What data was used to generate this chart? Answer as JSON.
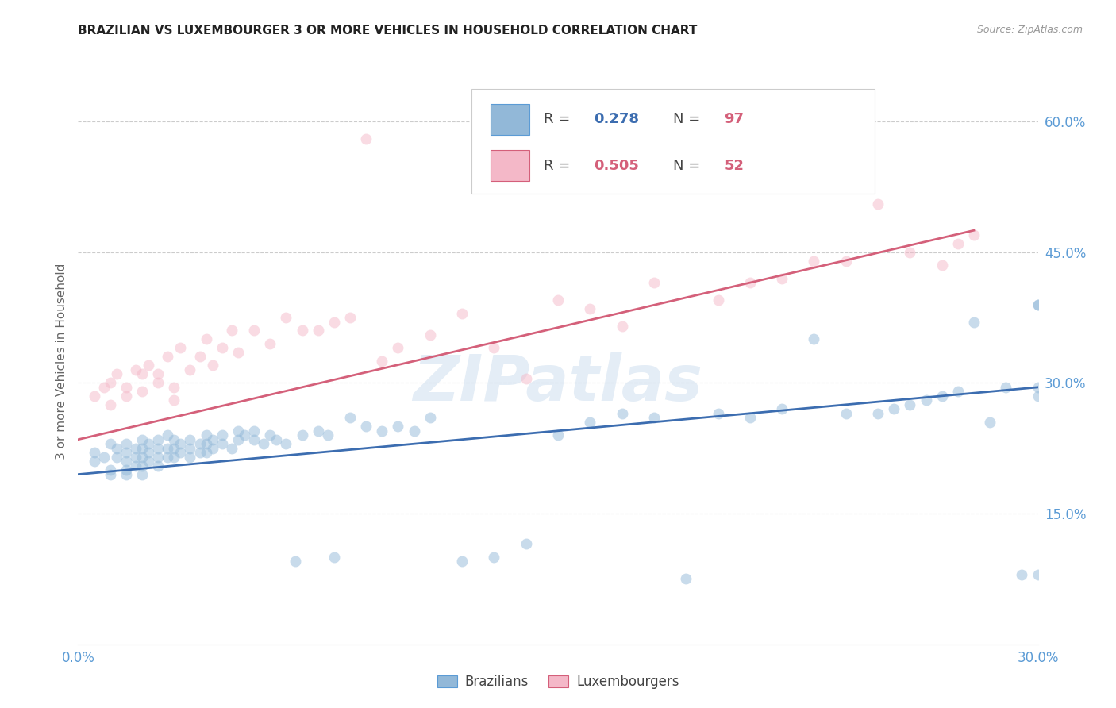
{
  "title": "BRAZILIAN VS LUXEMBOURGER 3 OR MORE VEHICLES IN HOUSEHOLD CORRELATION CHART",
  "source": "Source: ZipAtlas.com",
  "ylabel": "3 or more Vehicles in Household",
  "xlim": [
    0.0,
    0.3
  ],
  "ylim": [
    0.0,
    0.65
  ],
  "xtick_positions": [
    0.0,
    0.05,
    0.1,
    0.15,
    0.2,
    0.25,
    0.3
  ],
  "xtick_labels": [
    "0.0%",
    "",
    "",
    "",
    "",
    "",
    "30.0%"
  ],
  "ytick_values": [
    0.15,
    0.3,
    0.45,
    0.6
  ],
  "ytick_labels": [
    "15.0%",
    "30.0%",
    "45.0%",
    "60.0%"
  ],
  "watermark": "ZIPatlas",
  "blue_scatter_color": "#92b8d8",
  "pink_scatter_color": "#f4b8c8",
  "blue_line_color": "#3c6db0",
  "pink_line_color": "#d4607a",
  "tick_color": "#5b9bd5",
  "grid_color": "#cccccc",
  "background_color": "#ffffff",
  "blue_line_x0": 0.0,
  "blue_line_x1": 0.3,
  "blue_line_y0": 0.195,
  "blue_line_y1": 0.295,
  "pink_line_x0": 0.0,
  "pink_line_x1": 0.28,
  "pink_line_y0": 0.235,
  "pink_line_y1": 0.475,
  "legend_blue_r": "0.278",
  "legend_blue_n": "97",
  "legend_pink_r": "0.505",
  "legend_pink_n": "52",
  "bottom_legend_brazilians": "Brazilians",
  "bottom_legend_luxembourgers": "Luxembourgers",
  "scatter_size": 100,
  "scatter_alpha": 0.5,
  "line_width": 2.0,
  "brazilians_x": [
    0.005,
    0.005,
    0.008,
    0.01,
    0.01,
    0.01,
    0.012,
    0.012,
    0.015,
    0.015,
    0.015,
    0.015,
    0.015,
    0.018,
    0.018,
    0.018,
    0.02,
    0.02,
    0.02,
    0.02,
    0.02,
    0.022,
    0.022,
    0.022,
    0.025,
    0.025,
    0.025,
    0.025,
    0.028,
    0.028,
    0.028,
    0.03,
    0.03,
    0.03,
    0.032,
    0.032,
    0.035,
    0.035,
    0.035,
    0.038,
    0.038,
    0.04,
    0.04,
    0.04,
    0.042,
    0.042,
    0.045,
    0.045,
    0.048,
    0.05,
    0.05,
    0.052,
    0.055,
    0.055,
    0.058,
    0.06,
    0.062,
    0.065,
    0.068,
    0.07,
    0.075,
    0.078,
    0.08,
    0.085,
    0.09,
    0.095,
    0.1,
    0.105,
    0.11,
    0.12,
    0.13,
    0.14,
    0.15,
    0.16,
    0.17,
    0.18,
    0.19,
    0.2,
    0.21,
    0.22,
    0.23,
    0.24,
    0.25,
    0.255,
    0.26,
    0.265,
    0.27,
    0.275,
    0.28,
    0.285,
    0.29,
    0.295,
    0.3,
    0.3,
    0.3,
    0.3,
    0.3
  ],
  "brazilians_y": [
    0.22,
    0.21,
    0.215,
    0.23,
    0.2,
    0.195,
    0.225,
    0.215,
    0.23,
    0.22,
    0.21,
    0.2,
    0.195,
    0.225,
    0.215,
    0.205,
    0.235,
    0.225,
    0.215,
    0.205,
    0.195,
    0.23,
    0.22,
    0.21,
    0.235,
    0.225,
    0.215,
    0.205,
    0.24,
    0.225,
    0.215,
    0.235,
    0.225,
    0.215,
    0.23,
    0.22,
    0.235,
    0.225,
    0.215,
    0.23,
    0.22,
    0.24,
    0.23,
    0.22,
    0.235,
    0.225,
    0.24,
    0.23,
    0.225,
    0.245,
    0.235,
    0.24,
    0.245,
    0.235,
    0.23,
    0.24,
    0.235,
    0.23,
    0.095,
    0.24,
    0.245,
    0.24,
    0.1,
    0.26,
    0.25,
    0.245,
    0.25,
    0.245,
    0.26,
    0.095,
    0.1,
    0.115,
    0.24,
    0.255,
    0.265,
    0.26,
    0.075,
    0.265,
    0.26,
    0.27,
    0.35,
    0.265,
    0.265,
    0.27,
    0.275,
    0.28,
    0.285,
    0.29,
    0.37,
    0.255,
    0.295,
    0.08,
    0.39,
    0.295,
    0.285,
    0.08,
    0.39
  ],
  "luxembourgers_x": [
    0.005,
    0.008,
    0.01,
    0.01,
    0.012,
    0.015,
    0.015,
    0.018,
    0.02,
    0.02,
    0.022,
    0.025,
    0.025,
    0.028,
    0.03,
    0.03,
    0.032,
    0.035,
    0.038,
    0.04,
    0.042,
    0.045,
    0.048,
    0.05,
    0.055,
    0.06,
    0.065,
    0.07,
    0.08,
    0.09,
    0.095,
    0.1,
    0.11,
    0.12,
    0.14,
    0.16,
    0.18,
    0.2,
    0.22,
    0.24,
    0.26,
    0.27,
    0.275,
    0.28,
    0.075,
    0.085,
    0.13,
    0.15,
    0.17,
    0.21,
    0.23,
    0.25
  ],
  "luxembourgers_y": [
    0.285,
    0.295,
    0.3,
    0.275,
    0.31,
    0.295,
    0.285,
    0.315,
    0.31,
    0.29,
    0.32,
    0.31,
    0.3,
    0.33,
    0.295,
    0.28,
    0.34,
    0.315,
    0.33,
    0.35,
    0.32,
    0.34,
    0.36,
    0.335,
    0.36,
    0.345,
    0.375,
    0.36,
    0.37,
    0.58,
    0.325,
    0.34,
    0.355,
    0.38,
    0.305,
    0.385,
    0.415,
    0.395,
    0.42,
    0.44,
    0.45,
    0.435,
    0.46,
    0.47,
    0.36,
    0.375,
    0.34,
    0.395,
    0.365,
    0.415,
    0.44,
    0.505
  ]
}
